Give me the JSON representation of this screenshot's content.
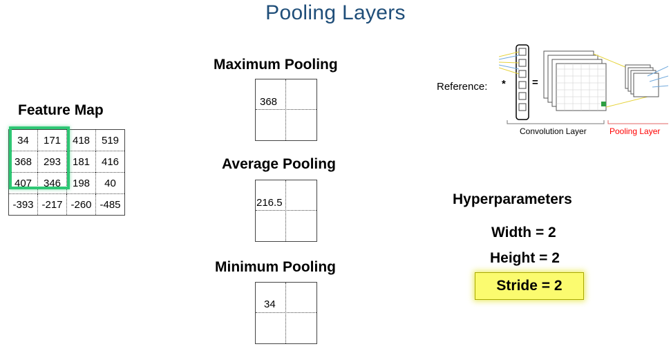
{
  "title": "Pooling Layers",
  "feature_map": {
    "heading": "Feature Map",
    "rows": [
      [
        "34",
        "171",
        "418",
        "519"
      ],
      [
        "368",
        "293",
        "181",
        "416"
      ],
      [
        "407",
        "346",
        "198",
        "40"
      ],
      [
        "-393",
        "-217",
        "-260",
        "-485"
      ]
    ],
    "highlight_color": "#2ec774"
  },
  "pooling": {
    "max": {
      "heading": "Maximum Pooling",
      "value": "368"
    },
    "avg": {
      "heading": "Average Pooling",
      "value": "216.5"
    },
    "min": {
      "heading": "Minimum Pooling",
      "value": "34"
    }
  },
  "reference": {
    "label": "Reference:",
    "asterisk": "*",
    "equals": "=",
    "conv_label": "Convolution Layer",
    "pool_label": "Pooling Layer",
    "pool_label_color": "#ff0000"
  },
  "hyperparameters": {
    "heading": "Hyperparameters",
    "width": "Width = 2",
    "height": "Height = 2",
    "stride": "Stride = 2",
    "stride_highlight_color": "#fbfb6f"
  }
}
